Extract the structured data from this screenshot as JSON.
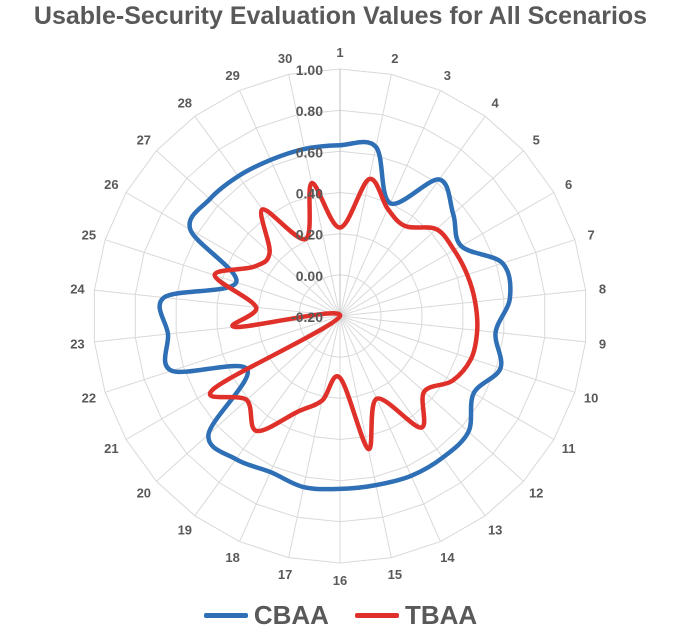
{
  "chart_data": {
    "type": "radar",
    "title": "Usable-Security Evaluation Values for All Scenarios",
    "categories": [
      "1",
      "2",
      "3",
      "4",
      "5",
      "6",
      "7",
      "8",
      "9",
      "10",
      "11",
      "12",
      "13",
      "14",
      "15",
      "16",
      "17",
      "18",
      "19",
      "20",
      "21",
      "22",
      "23",
      "24",
      "25",
      "26",
      "27",
      "28",
      "29",
      "30"
    ],
    "rlim": [
      -0.2,
      1.0
    ],
    "ticks": [
      "-0.20",
      "0.00",
      "0.20",
      "0.40",
      "0.60",
      "0.80",
      "1.00"
    ],
    "grid": true,
    "legend_position": "bottom",
    "series": [
      {
        "name": "CBAA",
        "color": "#2E6FB6",
        "values": [
          0.63,
          0.64,
          0.4,
          0.62,
          0.54,
          0.48,
          0.63,
          0.63,
          0.56,
          0.62,
          0.55,
          0.64,
          0.65,
          0.65,
          0.64,
          0.64,
          0.65,
          0.63,
          0.66,
          0.66,
          0.32,
          0.66,
          0.64,
          0.66,
          0.33,
          0.64,
          0.65,
          0.64,
          0.63,
          0.63
        ]
      },
      {
        "name": "TBAA",
        "color": "#E0302A",
        "values": [
          0.23,
          0.48,
          0.37,
          0.34,
          0.43,
          0.44,
          0.45,
          0.46,
          0.47,
          0.47,
          0.43,
          0.35,
          0.47,
          0.24,
          0.46,
          0.1,
          0.22,
          0.31,
          0.49,
          0.41,
          0.51,
          -0.2,
          0.31,
          0.21,
          0.44,
          0.28,
          0.26,
          0.44,
          0.21,
          0.46
        ]
      }
    ]
  }
}
